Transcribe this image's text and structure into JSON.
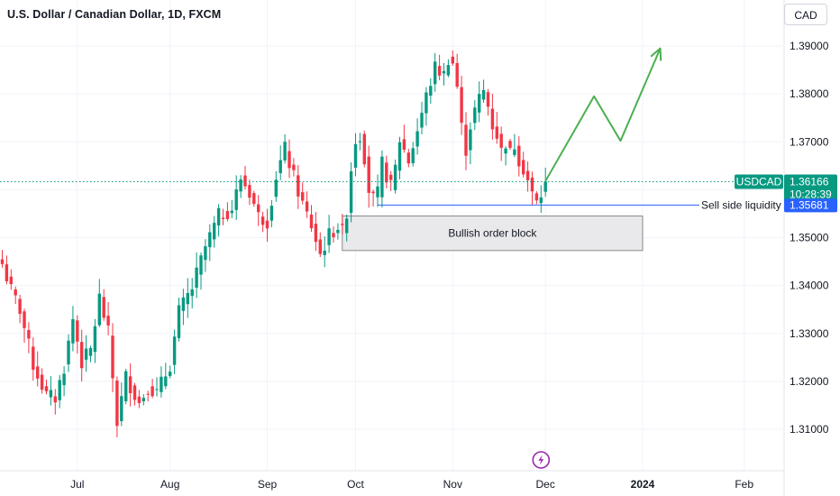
{
  "header": {
    "title": "U.S. Dollar / Canadian Dollar, 1D, FXCM",
    "currency_button": "CAD"
  },
  "colors": {
    "up": "#089981",
    "down": "#f23645",
    "accent_blue": "#2962ff",
    "projection": "#4caf50",
    "axis_text": "#131722"
  },
  "chart_data": {
    "type": "candlestick",
    "symbol": "USDCAD",
    "timeframe": "1D",
    "source": "FXCM",
    "ylim": [
      1.3045,
      1.3995
    ],
    "y_ticks": [
      1.31,
      1.32,
      1.33,
      1.34,
      1.35,
      1.36,
      1.37,
      1.38,
      1.39
    ],
    "y_tick_labels": [
      "1.31000",
      "1.32000",
      "1.33000",
      "1.34000",
      "1.35000",
      "1.36000",
      "1.37000",
      "1.38000",
      "1.39000"
    ],
    "x_ticks": [
      {
        "label": "Jul",
        "index": 17
      },
      {
        "label": "Aug",
        "index": 38
      },
      {
        "label": "Sep",
        "index": 60
      },
      {
        "label": "Oct",
        "index": 80
      },
      {
        "label": "Nov",
        "index": 102
      },
      {
        "label": "Dec",
        "index": 123
      },
      {
        "label": "2024",
        "index": 145
      },
      {
        "label": "Feb",
        "index": 168
      }
    ],
    "pivots": [
      {
        "i": 0,
        "p": 1.3445
      },
      {
        "i": 2,
        "p": 1.339
      },
      {
        "i": 4,
        "p": 1.335
      },
      {
        "i": 7,
        "p": 1.3235
      },
      {
        "i": 10,
        "p": 1.317
      },
      {
        "i": 12,
        "p": 1.3165
      },
      {
        "i": 14,
        "p": 1.323
      },
      {
        "i": 16,
        "p": 1.333
      },
      {
        "i": 18,
        "p": 1.324
      },
      {
        "i": 20,
        "p": 1.3265
      },
      {
        "i": 22,
        "p": 1.3375
      },
      {
        "i": 24,
        "p": 1.33
      },
      {
        "i": 26,
        "p": 1.3115
      },
      {
        "i": 28,
        "p": 1.321
      },
      {
        "i": 31,
        "p": 1.3155
      },
      {
        "i": 33,
        "p": 1.319
      },
      {
        "i": 35,
        "p": 1.3175
      },
      {
        "i": 38,
        "p": 1.3235
      },
      {
        "i": 40,
        "p": 1.3345
      },
      {
        "i": 43,
        "p": 1.3395
      },
      {
        "i": 46,
        "p": 1.348
      },
      {
        "i": 49,
        "p": 1.3545
      },
      {
        "i": 52,
        "p": 1.356
      },
      {
        "i": 54,
        "p": 1.3625
      },
      {
        "i": 56,
        "p": 1.3595
      },
      {
        "i": 58,
        "p": 1.3545
      },
      {
        "i": 60,
        "p": 1.3535
      },
      {
        "i": 62,
        "p": 1.363
      },
      {
        "i": 64,
        "p": 1.3685
      },
      {
        "i": 66,
        "p": 1.3625
      },
      {
        "i": 68,
        "p": 1.357
      },
      {
        "i": 70,
        "p": 1.3525
      },
      {
        "i": 72,
        "p": 1.3465
      },
      {
        "i": 74,
        "p": 1.3505
      },
      {
        "i": 76,
        "p": 1.3525
      },
      {
        "i": 77,
        "p": 1.351
      },
      {
        "i": 78,
        "p": 1.3555
      },
      {
        "i": 79,
        "p": 1.3645
      },
      {
        "i": 80,
        "p": 1.3705
      },
      {
        "i": 81,
        "p": 1.3715
      },
      {
        "i": 82,
        "p": 1.367
      },
      {
        "i": 83,
        "p": 1.36
      },
      {
        "i": 84,
        "p": 1.358
      },
      {
        "i": 85,
        "p": 1.359
      },
      {
        "i": 86,
        "p": 1.3655
      },
      {
        "i": 87,
        "p": 1.363
      },
      {
        "i": 88,
        "p": 1.3605
      },
      {
        "i": 89,
        "p": 1.3645
      },
      {
        "i": 90,
        "p": 1.3705
      },
      {
        "i": 92,
        "p": 1.366
      },
      {
        "i": 94,
        "p": 1.3725
      },
      {
        "i": 96,
        "p": 1.3795
      },
      {
        "i": 98,
        "p": 1.3855
      },
      {
        "i": 100,
        "p": 1.384
      },
      {
        "i": 101,
        "p": 1.3875
      },
      {
        "i": 102,
        "p": 1.3865
      },
      {
        "i": 103,
        "p": 1.3815
      },
      {
        "i": 104,
        "p": 1.373
      },
      {
        "i": 105,
        "p": 1.3685
      },
      {
        "i": 106,
        "p": 1.3735
      },
      {
        "i": 107,
        "p": 1.3765
      },
      {
        "i": 108,
        "p": 1.379
      },
      {
        "i": 109,
        "p": 1.3805
      },
      {
        "i": 110,
        "p": 1.3775
      },
      {
        "i": 111,
        "p": 1.3735
      },
      {
        "i": 112,
        "p": 1.3715
      },
      {
        "i": 113,
        "p": 1.368
      },
      {
        "i": 114,
        "p": 1.37
      },
      {
        "i": 115,
        "p": 1.3675
      },
      {
        "i": 116,
        "p": 1.3695
      },
      {
        "i": 117,
        "p": 1.3665
      },
      {
        "i": 118,
        "p": 1.3645
      },
      {
        "i": 119,
        "p": 1.362
      },
      {
        "i": 120,
        "p": 1.359
      },
      {
        "i": 121,
        "p": 1.3572
      },
      {
        "i": 122,
        "p": 1.359
      },
      {
        "i": 123,
        "p": 1.3617
      }
    ],
    "price_line": {
      "label": "USDCAD",
      "value": "1.36166",
      "countdown": "10:28:39",
      "price": 1.36166
    },
    "liquidity_line": {
      "label": "Sell side liquidity",
      "value": "1.35681",
      "price": 1.35681,
      "from_index": 85
    },
    "order_block": {
      "label": "Bullish order block",
      "top": 1.3545,
      "bottom": 1.3473,
      "from_index": 77,
      "to_index": 145
    },
    "projection_path": [
      {
        "index": 123,
        "price": 1.3618
      },
      {
        "index": 134,
        "price": 1.3795
      },
      {
        "index": 140,
        "price": 1.3702
      },
      {
        "index": 149,
        "price": 1.3895
      }
    ],
    "event_marker": {
      "index": 122,
      "icon": "lightning-icon"
    }
  }
}
